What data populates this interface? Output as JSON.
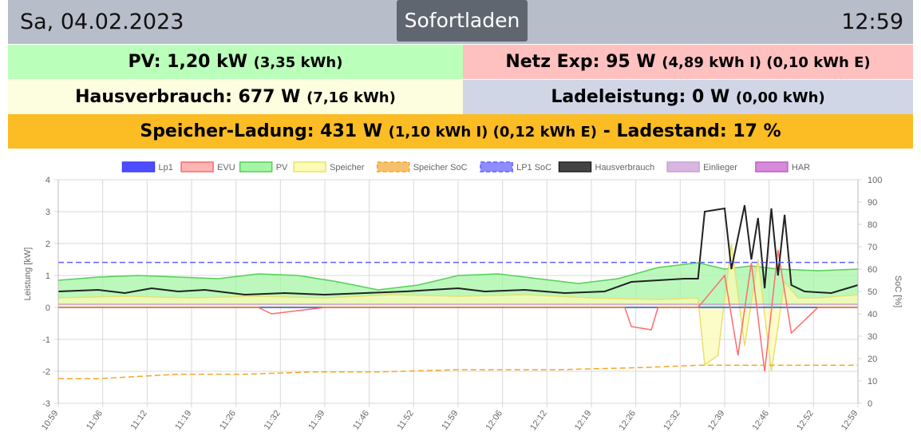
{
  "header": {
    "date": "Sa, 04.02.2023",
    "mode_button": "Sofortladen",
    "time": "12:59"
  },
  "tiles": {
    "pv": {
      "label": "PV: 1,20 kW",
      "detail": "(3,35 kWh)"
    },
    "grid": {
      "label": "Netz Exp: 95 W",
      "detail": "(4,89 kWh I) (0,10 kWh E)"
    },
    "house": {
      "label": "Hausverbrauch: 677 W",
      "detail": "(7,16 kWh)"
    },
    "charging": {
      "label": "Ladeleistung: 0 W",
      "detail": "(0,00 kWh)"
    },
    "battery": {
      "label": "Speicher-Ladung: 431 W",
      "detail": "(1,10 kWh I) (0,12 kWh E)",
      "suffix": "- Ladestand: 17 %"
    }
  },
  "colors": {
    "topbar": "#b8bdca",
    "mode_button": "#5f6670",
    "pv_tile": "#baffba",
    "grid_tile": "#ffc0c0",
    "house_tile": "#fdfddf",
    "charge_tile": "#d0d6e6",
    "battery_tile": "#fbbc24"
  },
  "chart_data": {
    "type": "line",
    "ylabel": "Leistung [kW]",
    "y2label": "SoC [%]",
    "ylim": [
      -3,
      4
    ],
    "y2lim": [
      0,
      100
    ],
    "yticks": [
      "4",
      "3",
      "2",
      "1",
      "0",
      "-1",
      "-2",
      "-3"
    ],
    "y2ticks": [
      "100",
      "90",
      "80",
      "70",
      "60",
      "50",
      "40",
      "30",
      "20",
      "10",
      "0"
    ],
    "xticks": [
      "10:59",
      "11:06",
      "11:12",
      "11:19",
      "11:26",
      "11:32",
      "11:39",
      "11:46",
      "11:52",
      "11:59",
      "12:06",
      "12:12",
      "12:19",
      "12:26",
      "12:32",
      "12:39",
      "12:46",
      "12:52",
      "12:59"
    ],
    "grid": true,
    "legend_position": "top",
    "legend": [
      {
        "name": "Lp1",
        "color": "#4040ff",
        "fill": "#4d4dff",
        "dashed": false
      },
      {
        "name": "EVU",
        "color": "#ff6b6b",
        "fill": "#ffb5b5",
        "dashed": false
      },
      {
        "name": "PV",
        "color": "#55d055",
        "fill": "#a6f5a6",
        "dashed": false
      },
      {
        "name": "Speicher",
        "color": "#e8e070",
        "fill": "#fbfbb5",
        "dashed": false
      },
      {
        "name": "Speicher SoC",
        "color": "#f5a623",
        "fill": "#f5c16e",
        "dashed": true
      },
      {
        "name": "LP1 SoC",
        "color": "#6060ff",
        "fill": "#8d8dff",
        "dashed": true
      },
      {
        "name": "Hausverbrauch",
        "color": "#222222",
        "fill": "#444444",
        "dashed": false
      },
      {
        "name": "Einlieger",
        "color": "#c9a0d4",
        "fill": "#d8b6e0",
        "dashed": false
      },
      {
        "name": "HAR",
        "color": "#c060c8",
        "fill": "#d68ad9",
        "dashed": false
      }
    ],
    "series": [
      {
        "name": "LP1 SoC",
        "axis": "right",
        "x": [
          0,
          120
        ],
        "values": [
          63,
          63
        ]
      },
      {
        "name": "Speicher SoC",
        "axis": "right",
        "x": [
          0,
          6,
          12,
          18,
          28,
          38,
          48,
          60,
          75,
          88,
          96,
          105,
          112,
          120
        ],
        "values": [
          11,
          11,
          12,
          13,
          13,
          14,
          14,
          15,
          15,
          16,
          17,
          17,
          17,
          17
        ]
      },
      {
        "name": "PV",
        "x": [
          0,
          6,
          12,
          18,
          24,
          30,
          36,
          42,
          48,
          54,
          60,
          66,
          72,
          78,
          84,
          90,
          96,
          100,
          104,
          108,
          114,
          120
        ],
        "values": [
          0.85,
          0.95,
          1.0,
          0.95,
          0.9,
          1.05,
          1.0,
          0.8,
          0.55,
          0.7,
          1.0,
          1.05,
          0.9,
          0.75,
          0.9,
          1.25,
          1.4,
          1.2,
          1.3,
          1.2,
          1.15,
          1.2
        ]
      },
      {
        "name": "Hausverbrauch",
        "x": [
          0,
          6,
          10,
          14,
          18,
          22,
          28,
          34,
          40,
          46,
          52,
          56,
          60,
          64,
          70,
          76,
          82,
          86,
          90,
          94,
          96,
          97,
          100,
          101,
          103,
          104,
          105,
          106,
          107,
          108,
          109,
          110,
          112,
          116,
          120
        ],
        "values": [
          0.5,
          0.55,
          0.45,
          0.6,
          0.5,
          0.55,
          0.4,
          0.45,
          0.4,
          0.45,
          0.5,
          0.55,
          0.6,
          0.5,
          0.55,
          0.45,
          0.5,
          0.8,
          0.85,
          0.9,
          0.9,
          3.0,
          3.1,
          1.2,
          3.2,
          1.5,
          2.8,
          0.6,
          3.1,
          1.0,
          2.9,
          0.7,
          0.5,
          0.45,
          0.7
        ]
      },
      {
        "name": "Speicher",
        "x": [
          0,
          10,
          20,
          30,
          40,
          50,
          60,
          70,
          80,
          90,
          96,
          97,
          99,
          101,
          103,
          105,
          107,
          109,
          111,
          114,
          120
        ],
        "values": [
          0.3,
          0.35,
          0.3,
          0.35,
          0.3,
          0.4,
          0.35,
          0.4,
          0.3,
          0.25,
          0.3,
          -1.8,
          -1.5,
          2.0,
          -1.2,
          1.5,
          -2.0,
          0.8,
          0.3,
          0.3,
          0.4
        ]
      },
      {
        "name": "EVU",
        "x": [
          0,
          10,
          20,
          30,
          32,
          40,
          50,
          60,
          70,
          85,
          86,
          89,
          90,
          96,
          100,
          102,
          104,
          106,
          108,
          110,
          114,
          120
        ],
        "values": [
          0.0,
          0.0,
          0.0,
          0.0,
          -0.2,
          0.0,
          0.0,
          0.0,
          0.0,
          0.0,
          -0.6,
          -0.7,
          0.0,
          0.0,
          1.0,
          -1.5,
          1.4,
          -2.0,
          1.8,
          -0.8,
          0.0,
          0.0
        ]
      },
      {
        "name": "Lp1",
        "x": [
          0,
          120
        ],
        "values": [
          0,
          0
        ]
      },
      {
        "name": "Einlieger",
        "x": [
          0,
          120
        ],
        "values": [
          0.1,
          0.1
        ]
      }
    ]
  }
}
